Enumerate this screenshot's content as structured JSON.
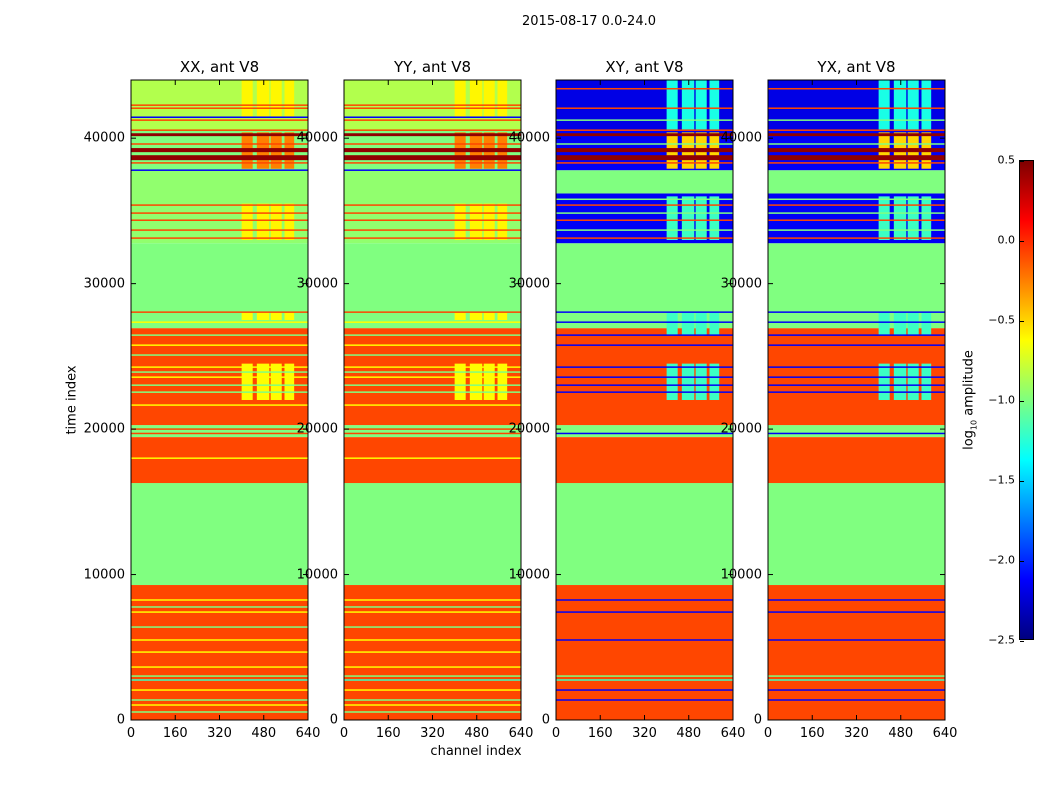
{
  "suptitle": "2015-08-17 0.0-24.0",
  "chart_data": {
    "type": "heatmap",
    "title": "2015-08-17 0.0-24.0",
    "xlabel": "channel index",
    "ylabel": "time index",
    "xlim": [
      0,
      640
    ],
    "ylim": [
      0,
      44000
    ],
    "xticks": [
      "0",
      "160",
      "320",
      "480",
      "640"
    ],
    "xtick_values": [
      0,
      160,
      320,
      480,
      640
    ],
    "yticks": [
      "0",
      "10000",
      "20000",
      "30000",
      "40000"
    ],
    "ytick_values": [
      0,
      10000,
      20000,
      30000,
      40000
    ],
    "colormap": "jet",
    "clim": [
      -2.5,
      0.5
    ],
    "colorbar": {
      "label_main": "log",
      "label_sub": "10",
      "label_rest": " amplitude",
      "ticks": [
        "0.5",
        "0.0",
        "−0.5",
        "−1.0",
        "−1.5",
        "−2.0",
        "−2.5"
      ],
      "tick_values": [
        0.5,
        0.0,
        -0.5,
        -1.0,
        -1.5,
        -2.0,
        -2.5
      ]
    },
    "panels": [
      {
        "title": "XX, ant V8",
        "group": "parallel"
      },
      {
        "title": "YY, ant V8",
        "group": "parallel"
      },
      {
        "title": "XY, ant V8",
        "group": "cross"
      },
      {
        "title": "YX, ant V8",
        "group": "cross"
      }
    ],
    "groups": {
      "parallel": {
        "bands": [
          [
            0,
            9280,
            -0.08
          ],
          [
            9280,
            16290,
            -1.0
          ],
          [
            16290,
            19450,
            -0.08
          ],
          [
            19450,
            20275,
            -1.0
          ],
          [
            20275,
            26940,
            -0.08
          ],
          [
            26940,
            32780,
            -1.0
          ],
          [
            32780,
            37800,
            -0.95
          ],
          [
            37800,
            40550,
            -1.0
          ],
          [
            40550,
            44000,
            -0.85
          ]
        ],
        "lines": [
          [
            550,
            -1.0
          ],
          [
            1030,
            -0.62
          ],
          [
            1375,
            -1.0
          ],
          [
            2060,
            -0.62
          ],
          [
            2750,
            -1.2
          ],
          [
            3020,
            -1.0
          ],
          [
            3640,
            -0.62
          ],
          [
            4670,
            -0.62
          ],
          [
            5500,
            -0.62
          ],
          [
            6390,
            -1.0
          ],
          [
            7420,
            -0.62
          ],
          [
            7770,
            -1.0
          ],
          [
            8250,
            -0.62
          ],
          [
            18000,
            -0.62
          ],
          [
            19700,
            -0.08
          ],
          [
            20000,
            -0.08
          ],
          [
            21650,
            -0.62
          ],
          [
            22540,
            -1.0
          ],
          [
            23020,
            -1.0
          ],
          [
            23570,
            -0.62
          ],
          [
            23920,
            -1.0
          ],
          [
            24260,
            -0.62
          ],
          [
            25090,
            -1.0
          ],
          [
            25770,
            -0.62
          ],
          [
            26460,
            -1.0
          ],
          [
            27350,
            -0.62
          ],
          [
            28040,
            -0.08
          ],
          [
            33130,
            -0.08
          ],
          [
            33680,
            -0.08
          ],
          [
            34360,
            -0.08
          ],
          [
            34850,
            -0.08
          ],
          [
            35400,
            -0.08
          ],
          [
            37800,
            -2.15
          ],
          [
            38300,
            -0.08
          ],
          [
            39600,
            -0.08
          ],
          [
            40550,
            -0.08
          ],
          [
            41240,
            -0.08
          ],
          [
            41440,
            -2.15
          ],
          [
            42060,
            -0.08
          ],
          [
            42270,
            -0.08
          ]
        ],
        "thick": [
          [
            38490,
            38830,
            0.45
          ],
          [
            39040,
            39320,
            0.45
          ],
          [
            40140,
            40340,
            0.45
          ]
        ],
        "patches": [
          [
            22000,
            24500,
            -0.62
          ],
          [
            27500,
            28000,
            -0.62
          ],
          [
            33000,
            35500,
            -0.6
          ],
          [
            37900,
            40400,
            -0.25
          ],
          [
            41500,
            44000,
            -0.6
          ]
        ]
      },
      "cross": {
        "bands": [
          [
            0,
            9280,
            -0.08
          ],
          [
            9280,
            16290,
            -1.0
          ],
          [
            16290,
            19450,
            -0.08
          ],
          [
            19450,
            20275,
            -1.0
          ],
          [
            20275,
            26940,
            -0.08
          ],
          [
            26940,
            28000,
            -1.0
          ],
          [
            28000,
            32780,
            -1.0
          ],
          [
            32780,
            36200,
            -2.15
          ],
          [
            36200,
            37800,
            -1.0
          ],
          [
            37800,
            40550,
            -2.15
          ],
          [
            40550,
            44000,
            -2.2
          ]
        ],
        "lines": [
          [
            1375,
            -2.15
          ],
          [
            2060,
            -2.15
          ],
          [
            2750,
            -1.2
          ],
          [
            3020,
            -1.0
          ],
          [
            5500,
            -2.15
          ],
          [
            7420,
            -2.15
          ],
          [
            8250,
            -2.15
          ],
          [
            19700,
            -2.15
          ],
          [
            22540,
            -2.15
          ],
          [
            23020,
            -2.15
          ],
          [
            23570,
            -2.15
          ],
          [
            24260,
            -2.15
          ],
          [
            25770,
            -2.15
          ],
          [
            26460,
            -2.15
          ],
          [
            27350,
            -2.15
          ],
          [
            28040,
            -2.15
          ],
          [
            33130,
            -0.08
          ],
          [
            33680,
            -1.0
          ],
          [
            34360,
            -0.08
          ],
          [
            34850,
            -1.0
          ],
          [
            35400,
            -0.08
          ],
          [
            35800,
            -1.0
          ],
          [
            38300,
            -0.08
          ],
          [
            39600,
            -1.0
          ],
          [
            40550,
            -0.08
          ],
          [
            41240,
            -1.0
          ],
          [
            42060,
            -0.08
          ],
          [
            43400,
            -0.08
          ]
        ],
        "thick": [
          [
            38490,
            38830,
            0.45
          ],
          [
            39040,
            39320,
            0.45
          ],
          [
            40140,
            40340,
            0.45
          ]
        ],
        "patches": [
          [
            22000,
            24500,
            -1.2
          ],
          [
            26500,
            28000,
            -1.2
          ],
          [
            33000,
            36000,
            -1.2
          ],
          [
            37900,
            40400,
            -0.5
          ],
          [
            40600,
            44000,
            -1.3
          ]
        ]
      }
    },
    "patch_channels": [
      [
        400,
        440
      ],
      [
        455,
        500
      ],
      [
        505,
        545
      ],
      [
        555,
        590
      ]
    ]
  }
}
